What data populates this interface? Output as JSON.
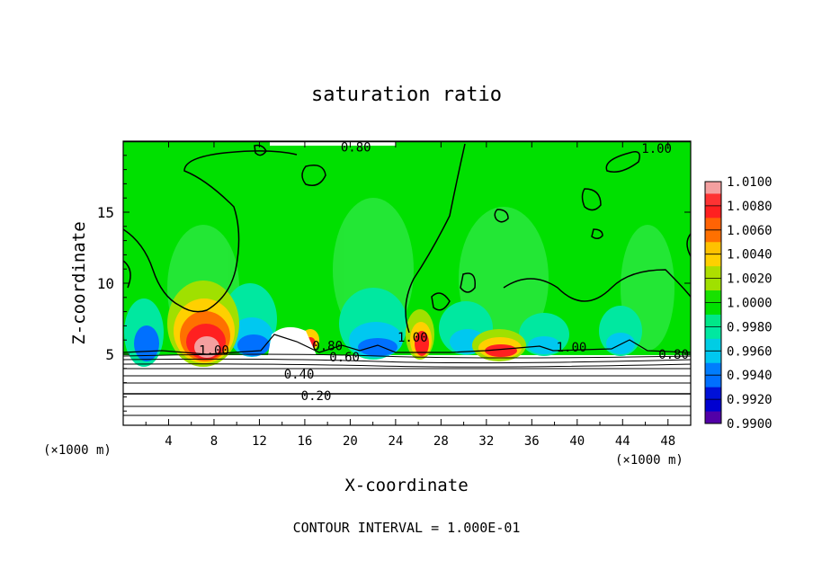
{
  "chart_data": {
    "type": "heatmap",
    "title": "saturation ratio",
    "xlabel": "X-coordinate",
    "ylabel": "Z-coordinate",
    "x_unit": "(×1000 m)",
    "x_unit_right": "(×1000 m)",
    "xlim": [
      0,
      50
    ],
    "ylim": [
      0,
      20
    ],
    "x_ticks": [
      4,
      8,
      12,
      16,
      20,
      24,
      28,
      32,
      36,
      40,
      44,
      48
    ],
    "y_ticks": [
      5,
      10,
      15
    ],
    "colorbar": {
      "levels": [
        "1.0100",
        "1.0080",
        "1.0060",
        "1.0040",
        "1.0020",
        "1.0000",
        "0.9980",
        "0.9960",
        "0.9940",
        "0.9920",
        "0.9900"
      ],
      "colors": [
        "#f4a0a0",
        "#ff2020",
        "#ff7000",
        "#ffd000",
        "#a0e000",
        "#00e000",
        "#00e8a0",
        "#00c8f0",
        "#0070ff",
        "#0000d0",
        "#6000a0"
      ],
      "range": [
        0.99,
        1.01
      ]
    },
    "contour_labels": [
      {
        "text": "0.80",
        "x": 20.5,
        "z": 19.6
      },
      {
        "text": "1.00",
        "x": 47,
        "z": 19.5
      },
      {
        "text": "1.00",
        "x": 8,
        "z": 5.3
      },
      {
        "text": "0.80",
        "x": 18,
        "z": 5.6
      },
      {
        "text": "0.60",
        "x": 19.5,
        "z": 4.8
      },
      {
        "text": "0.40",
        "x": 15.5,
        "z": 3.6
      },
      {
        "text": "0.20",
        "x": 17,
        "z": 2.1
      },
      {
        "text": "1.00",
        "x": 25.5,
        "z": 6.2
      },
      {
        "text": "1.00",
        "x": 39.5,
        "z": 5.5
      },
      {
        "text": "0.80",
        "x": 48.5,
        "z": 5.0
      }
    ],
    "footer": "CONTOUR INTERVAL = 1.000E-01"
  }
}
